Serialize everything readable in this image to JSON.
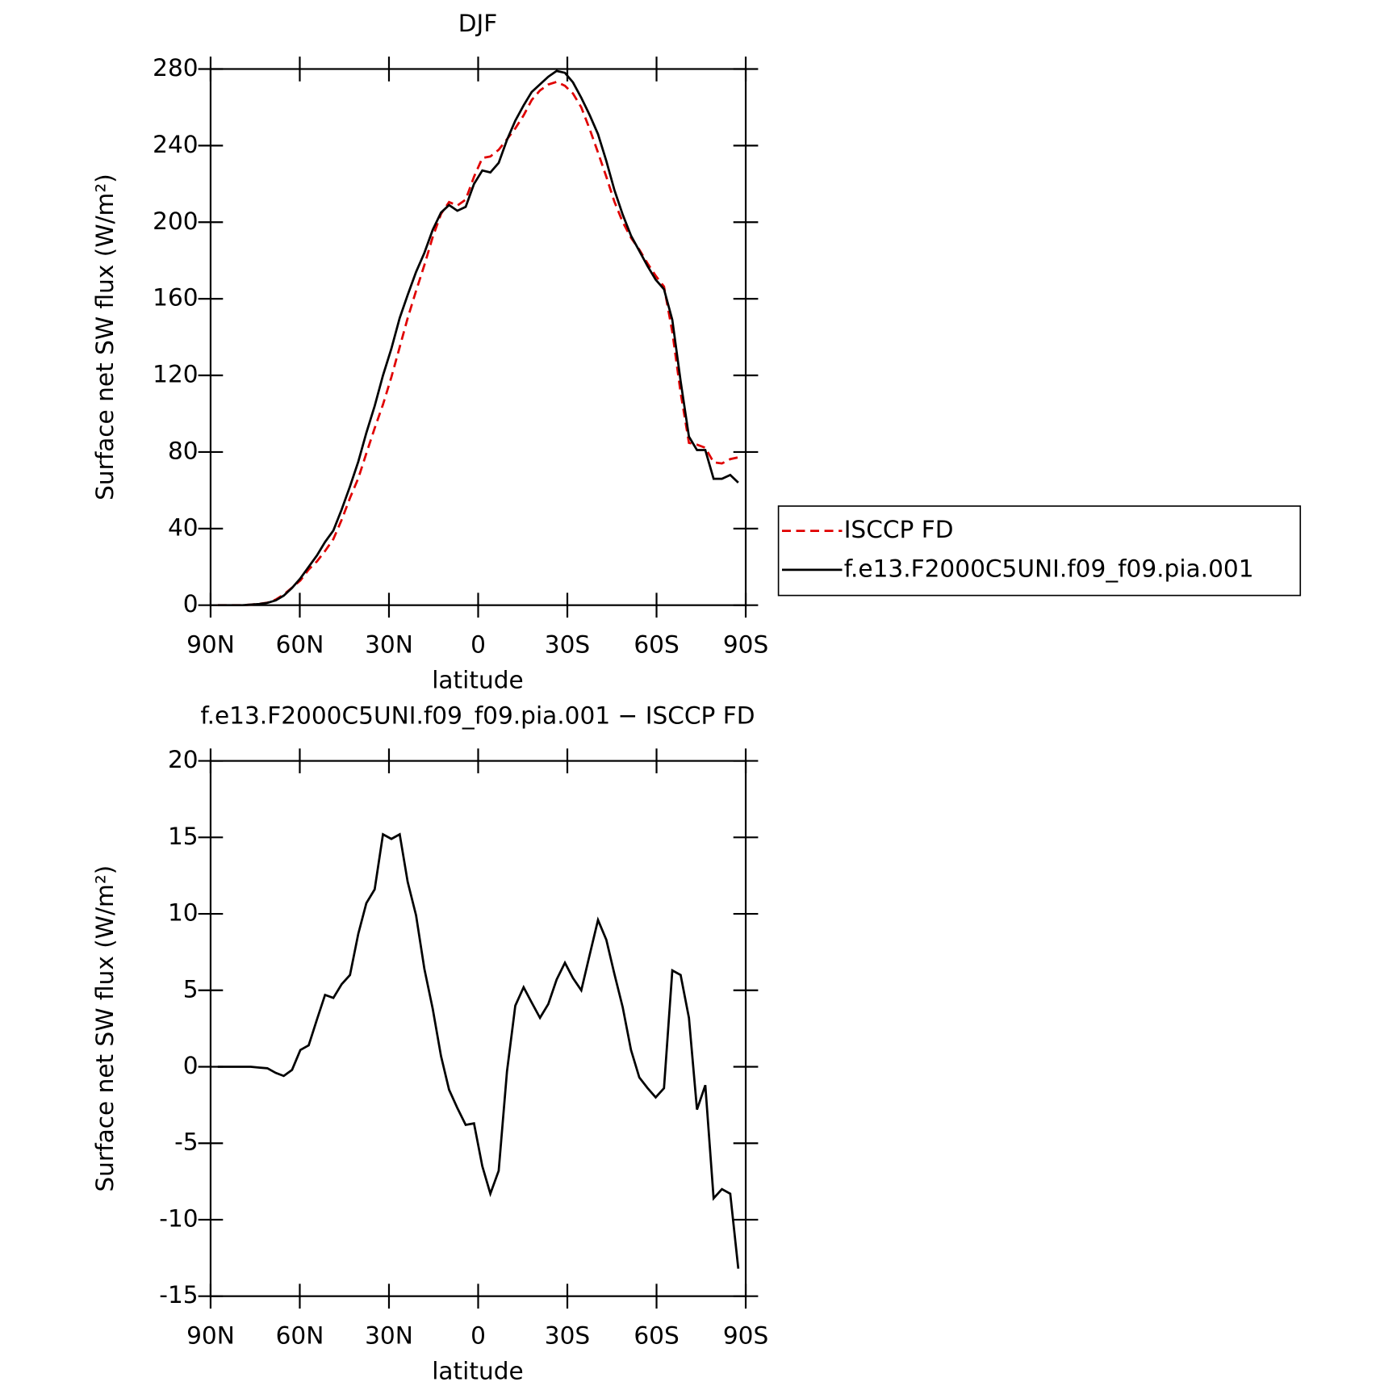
{
  "chart_data": [
    {
      "type": "line",
      "title": "DJF",
      "xlabel": "latitude",
      "ylabel": "Surface net SW flux (W/m²)",
      "x": [
        87.6,
        84.8,
        82.0,
        79.3,
        76.5,
        73.7,
        70.9,
        68.1,
        65.4,
        62.6,
        59.8,
        57.0,
        54.2,
        51.5,
        48.7,
        45.9,
        43.1,
        40.3,
        37.6,
        34.8,
        32.0,
        29.2,
        26.4,
        23.7,
        20.9,
        18.1,
        15.3,
        12.5,
        9.8,
        7.0,
        4.2,
        1.4,
        -1.4,
        -4.1,
        -6.9,
        -9.7,
        -12.5,
        -15.3,
        -18.0,
        -20.8,
        -23.6,
        -26.4,
        -29.2,
        -31.9,
        -34.7,
        -37.5,
        -40.3,
        -43.1,
        -45.8,
        -48.6,
        -51.4,
        -54.2,
        -57.0,
        -59.7,
        -62.5,
        -65.3,
        -68.1,
        -70.9,
        -73.6,
        -76.4,
        -79.2,
        -82.0,
        -84.8,
        -87.5
      ],
      "xlim": [
        90,
        -90
      ],
      "xticks": [
        {
          "value": 90,
          "label": "90N"
        },
        {
          "value": 60,
          "label": "60N"
        },
        {
          "value": 30,
          "label": "30N"
        },
        0,
        {
          "value": -30,
          "label": "30S"
        },
        {
          "value": -60,
          "label": "60S"
        },
        {
          "value": -90,
          "label": "90S"
        }
      ],
      "ylim": [
        0,
        280
      ],
      "yticks": [
        0,
        40,
        80,
        120,
        160,
        200,
        240,
        280
      ],
      "legend": "outside-right",
      "series": [
        {
          "name": "ISCCP FD",
          "color": "#e00000",
          "dash": true,
          "values": [
            0,
            0,
            0,
            0,
            0.3,
            0.7,
            1.3,
            2.9,
            5.6,
            9.2,
            12.9,
            18.6,
            22.9,
            28.3,
            34.5,
            44.6,
            56,
            66.3,
            79.3,
            92.4,
            104.8,
            119.1,
            134.8,
            149.9,
            164.1,
            177.6,
            192.2,
            204.3,
            210.5,
            208.7,
            211.8,
            223.7,
            233.5,
            234.3,
            237.8,
            243.3,
            249,
            255.8,
            263.8,
            268.8,
            271.9,
            273.3,
            271.2,
            267.2,
            260,
            248.7,
            236.4,
            223.7,
            210.9,
            200.1,
            191.9,
            185.7,
            178.4,
            172,
            166.4,
            142.7,
            111,
            84.8,
            83.8,
            82.2,
            74.6,
            74,
            76.3,
            77.2
          ]
        },
        {
          "name": "f.e13.F2000C5UNI.f09_f09.pia.001",
          "color": "#000000",
          "dash": false,
          "values": [
            0,
            0,
            0,
            0,
            0.3,
            0.6,
            1.2,
            2.5,
            5,
            9,
            14,
            20,
            26,
            33,
            39,
            50,
            62,
            75,
            90,
            104,
            120,
            134,
            150,
            162,
            174,
            184,
            196,
            205,
            209,
            206,
            208,
            220,
            227,
            226,
            231,
            243,
            253,
            261,
            268,
            272,
            276,
            279,
            278,
            273,
            265,
            256,
            246,
            232,
            217,
            204,
            193,
            185,
            177,
            170,
            165,
            149,
            117,
            88,
            81,
            81,
            66,
            66,
            68,
            64
          ]
        }
      ]
    },
    {
      "type": "line",
      "title": "f.e13.F2000C5UNI.f09_f09.pia.001 − ISCCP FD",
      "xlabel": "latitude",
      "ylabel": "Surface net SW flux (W/m²)",
      "x": [
        87.6,
        84.8,
        82.0,
        79.3,
        76.5,
        73.7,
        70.9,
        68.1,
        65.4,
        62.6,
        59.8,
        57.0,
        54.2,
        51.5,
        48.7,
        45.9,
        43.1,
        40.3,
        37.6,
        34.8,
        32.0,
        29.2,
        26.4,
        23.7,
        20.9,
        18.1,
        15.3,
        12.5,
        9.8,
        7.0,
        4.2,
        1.4,
        -1.4,
        -4.1,
        -6.9,
        -9.7,
        -12.5,
        -15.3,
        -18.0,
        -20.8,
        -23.6,
        -26.4,
        -29.2,
        -31.9,
        -34.7,
        -37.5,
        -40.3,
        -43.1,
        -45.8,
        -48.6,
        -51.4,
        -54.2,
        -57.0,
        -59.7,
        -62.5,
        -65.3,
        -68.1,
        -70.9,
        -73.6,
        -76.4,
        -79.2,
        -82.0,
        -84.8,
        -87.5
      ],
      "xlim": [
        90,
        -90
      ],
      "xticks": [
        {
          "value": 90,
          "label": "90N"
        },
        {
          "value": 60,
          "label": "60N"
        },
        {
          "value": 30,
          "label": "30N"
        },
        0,
        {
          "value": -30,
          "label": "30S"
        },
        {
          "value": -60,
          "label": "60S"
        },
        {
          "value": -90,
          "label": "90S"
        }
      ],
      "ylim": [
        -15,
        20
      ],
      "yticks": [
        -15,
        -10,
        -5,
        0,
        5,
        10,
        15,
        20
      ],
      "series": [
        {
          "color": "#000000",
          "dash": false,
          "values": [
            0,
            0,
            0,
            0,
            0,
            -0.05,
            -0.1,
            -0.4,
            -0.6,
            -0.2,
            1.1,
            1.4,
            3.1,
            4.7,
            4.5,
            5.4,
            6.0,
            8.7,
            10.7,
            11.6,
            15.2,
            14.9,
            15.2,
            12.1,
            9.9,
            6.4,
            3.8,
            0.7,
            -1.5,
            -2.7,
            -3.8,
            -3.7,
            -6.5,
            -8.3,
            -6.8,
            -0.3,
            4.0,
            5.2,
            4.2,
            3.2,
            4.1,
            5.7,
            6.8,
            5.8,
            5.0,
            7.3,
            9.6,
            8.3,
            6.1,
            3.9,
            1.1,
            -0.7,
            -1.4,
            -2.0,
            -1.4,
            6.3,
            6.0,
            3.2,
            -2.8,
            -1.2,
            -8.6,
            -8.0,
            -8.3,
            -13.2
          ]
        }
      ]
    }
  ]
}
